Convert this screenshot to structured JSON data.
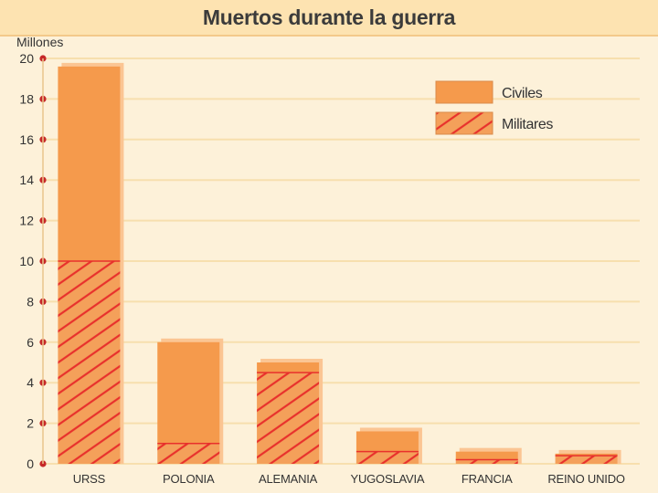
{
  "title": "Muertos durante la guerra",
  "chart_data": {
    "type": "bar",
    "stacked": true,
    "title": "Muertos durante la guerra",
    "ylabel": "Millones",
    "xlabel": "",
    "ylim": [
      0,
      20
    ],
    "yticks": [
      0,
      2,
      4,
      6,
      8,
      10,
      12,
      14,
      16,
      18,
      20
    ],
    "grid": true,
    "legend_position": "top-right",
    "categories": [
      "URSS",
      "POLONIA",
      "ALEMANIA",
      "YUGOSLAVIA",
      "FRANCIA",
      "REINO UNIDO"
    ],
    "series": [
      {
        "name": "Militares",
        "pattern": "hatched",
        "color": "#f4a05a",
        "hatch_color": "#e8312c",
        "values": [
          10,
          1,
          4.5,
          0.6,
          0.2,
          0.4
        ]
      },
      {
        "name": "Civiles",
        "pattern": "solid",
        "color": "#f59a4c",
        "values": [
          9.6,
          5,
          0.5,
          1.0,
          0.4,
          0.1
        ]
      }
    ],
    "colors": {
      "axis_dot": "#c62828",
      "grid": "#f7dfae",
      "bar_shadow": "#fbc593"
    }
  }
}
